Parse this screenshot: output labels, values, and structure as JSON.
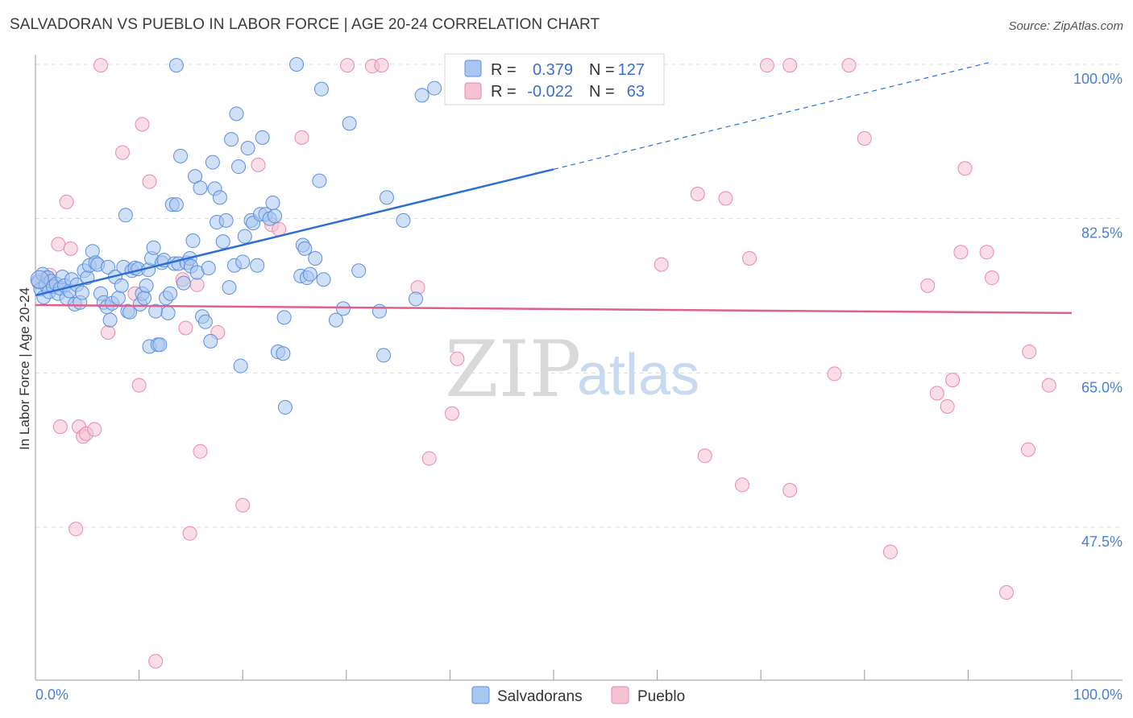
{
  "title": "SALVADORAN VS PUEBLO IN LABOR FORCE | AGE 20-24 CORRELATION CHART",
  "source": "Source: ZipAtlas.com",
  "watermark": {
    "zip": "ZIP",
    "atlas": "atlas"
  },
  "colors": {
    "blue": "#5b8fe0",
    "blue_fill": "#a9c6f0",
    "blue_line": "#2a6ed6",
    "pink": "#e98aa8",
    "pink_fill": "#f4c2d3",
    "pink_line": "#e0608a",
    "tick": "#4a7fd6",
    "grid": "#dcdcdc"
  },
  "chart_data": {
    "type": "scatter",
    "title": "SALVADORAN VS PUEBLO IN LABOR FORCE | AGE 20-24 CORRELATION CHART",
    "xlabel": "",
    "ylabel": "In Labor Force | Age 20-24",
    "xlim": [
      0,
      100
    ],
    "ylim": [
      30,
      102
    ],
    "x_tick_labels": [
      "0.0%",
      "100.0%"
    ],
    "y_ticks": [
      47.5,
      65.0,
      82.5,
      100.0
    ],
    "y_tick_labels": [
      "47.5%",
      "65.0%",
      "82.5%",
      "100.0%"
    ],
    "grid": true,
    "legend_top": {
      "rows": [
        {
          "r_label": "R =",
          "r_value": "0.379",
          "n_label": "N =",
          "n_value": "127"
        },
        {
          "r_label": "R =",
          "r_value": "-0.022",
          "n_label": "N =",
          "n_value": "63"
        }
      ]
    },
    "legend_bottom": [
      "Salvadorans",
      "Pueblo"
    ],
    "series": [
      {
        "name": "Salvadorans",
        "trend": {
          "x0": 0,
          "y0": 73.8,
          "x1": 50,
          "y1": 88.1,
          "dash_to_x": 92,
          "dash_to_y": 100.2
        },
        "points": [
          [
            0.3,
            75.3
          ],
          [
            0.5,
            74.5
          ],
          [
            0.7,
            76.2
          ],
          [
            0.8,
            73.6
          ],
          [
            1.0,
            75.0
          ],
          [
            1.2,
            75.8
          ],
          [
            1.3,
            74.2
          ],
          [
            1.5,
            75.4
          ],
          [
            1.7,
            74.8
          ],
          [
            2.0,
            75.1
          ],
          [
            2.2,
            74.0
          ],
          [
            2.4,
            74.6
          ],
          [
            2.6,
            75.9
          ],
          [
            2.8,
            74.9
          ],
          [
            3.0,
            73.5
          ],
          [
            3.3,
            74.3
          ],
          [
            3.5,
            75.6
          ],
          [
            3.8,
            72.8
          ],
          [
            4.0,
            75.0
          ],
          [
            4.3,
            73.0
          ],
          [
            4.5,
            74.1
          ],
          [
            4.7,
            76.6
          ],
          [
            5.0,
            75.8
          ],
          [
            5.2,
            77.2
          ],
          [
            5.5,
            78.8
          ],
          [
            5.8,
            77.5
          ],
          [
            6.0,
            77.3
          ],
          [
            6.3,
            74.0
          ],
          [
            6.6,
            73.0
          ],
          [
            6.9,
            72.5
          ],
          [
            7.0,
            77.0
          ],
          [
            7.2,
            71.0
          ],
          [
            7.4,
            72.9
          ],
          [
            7.7,
            75.9
          ],
          [
            8.0,
            73.5
          ],
          [
            8.3,
            74.9
          ],
          [
            8.5,
            77.0
          ],
          [
            8.7,
            82.9
          ],
          [
            8.9,
            72.0
          ],
          [
            9.1,
            71.9
          ],
          [
            9.3,
            76.6
          ],
          [
            9.6,
            76.9
          ],
          [
            9.9,
            76.8
          ],
          [
            10.1,
            72.8
          ],
          [
            10.3,
            74.0
          ],
          [
            10.5,
            73.5
          ],
          [
            10.7,
            74.9
          ],
          [
            10.9,
            76.7
          ],
          [
            11.0,
            68.0
          ],
          [
            11.2,
            78.0
          ],
          [
            11.4,
            79.2
          ],
          [
            11.6,
            72.0
          ],
          [
            11.8,
            68.2
          ],
          [
            12.0,
            68.2
          ],
          [
            12.2,
            77.5
          ],
          [
            12.4,
            77.8
          ],
          [
            12.6,
            73.5
          ],
          [
            12.8,
            71.8
          ],
          [
            13.0,
            74.0
          ],
          [
            13.2,
            84.1
          ],
          [
            13.4,
            77.4
          ],
          [
            13.6,
            84.1
          ],
          [
            13.8,
            77.4
          ],
          [
            14.0,
            89.6
          ],
          [
            14.3,
            75.2
          ],
          [
            14.6,
            77.5
          ],
          [
            14.9,
            78.0
          ],
          [
            15.0,
            77.1
          ],
          [
            15.2,
            80.0
          ],
          [
            15.4,
            87.3
          ],
          [
            15.6,
            76.4
          ],
          [
            15.9,
            86.0
          ],
          [
            16.1,
            71.4
          ],
          [
            16.4,
            70.8
          ],
          [
            16.7,
            76.9
          ],
          [
            16.9,
            68.6
          ],
          [
            17.1,
            88.9
          ],
          [
            17.3,
            85.9
          ],
          [
            17.5,
            82.1
          ],
          [
            17.8,
            84.9
          ],
          [
            18.1,
            79.9
          ],
          [
            18.4,
            82.3
          ],
          [
            18.7,
            74.7
          ],
          [
            18.9,
            91.5
          ],
          [
            19.2,
            77.2
          ],
          [
            19.4,
            94.4
          ],
          [
            19.6,
            88.4
          ],
          [
            19.8,
            65.8
          ],
          [
            20.0,
            77.6
          ],
          [
            20.2,
            80.5
          ],
          [
            20.5,
            90.5
          ],
          [
            20.8,
            82.3
          ],
          [
            21.0,
            82.0
          ],
          [
            21.4,
            77.2
          ],
          [
            21.7,
            83.0
          ],
          [
            21.9,
            91.7
          ],
          [
            22.2,
            83.0
          ],
          [
            22.6,
            82.5
          ],
          [
            22.9,
            84.3
          ],
          [
            23.1,
            82.8
          ],
          [
            23.4,
            67.4
          ],
          [
            23.9,
            67.2
          ],
          [
            24.0,
            71.3
          ],
          [
            24.1,
            61.1
          ],
          [
            25.2,
            100.0
          ],
          [
            25.6,
            76.0
          ],
          [
            25.8,
            79.5
          ],
          [
            26.0,
            79.1
          ],
          [
            26.2,
            75.8
          ],
          [
            26.5,
            76.2
          ],
          [
            27.0,
            78.0
          ],
          [
            27.4,
            86.8
          ],
          [
            27.6,
            97.2
          ],
          [
            27.8,
            75.6
          ],
          [
            29.0,
            71.0
          ],
          [
            29.7,
            72.3
          ],
          [
            30.3,
            93.3
          ],
          [
            31.2,
            76.6
          ],
          [
            33.2,
            72.0
          ],
          [
            33.6,
            67.0
          ],
          [
            33.9,
            84.9
          ],
          [
            35.5,
            82.3
          ],
          [
            36.7,
            73.4
          ],
          [
            37.3,
            96.5
          ],
          [
            38.5,
            97.3
          ],
          [
            42.0,
            99.8
          ],
          [
            13.6,
            99.9
          ]
        ]
      },
      {
        "name": "Pueblo",
        "trend": {
          "x0": 0,
          "y0": 72.7,
          "x1": 100,
          "y1": 71.8
        },
        "points": [
          [
            0.3,
            75.5
          ],
          [
            1.0,
            75.8
          ],
          [
            1.4,
            76.1
          ],
          [
            2.2,
            79.6
          ],
          [
            2.4,
            58.9
          ],
          [
            3.0,
            84.4
          ],
          [
            3.4,
            79.1
          ],
          [
            3.9,
            47.3
          ],
          [
            4.2,
            58.9
          ],
          [
            4.6,
            57.8
          ],
          [
            4.9,
            58.1
          ],
          [
            5.7,
            58.6
          ],
          [
            6.3,
            99.9
          ],
          [
            7.0,
            69.6
          ],
          [
            8.4,
            90.0
          ],
          [
            9.6,
            74.0
          ],
          [
            10.0,
            63.6
          ],
          [
            10.3,
            93.2
          ],
          [
            11.0,
            86.7
          ],
          [
            11.6,
            32.3
          ],
          [
            14.2,
            75.6
          ],
          [
            14.5,
            70.1
          ],
          [
            14.9,
            46.8
          ],
          [
            15.6,
            75.0
          ],
          [
            15.9,
            56.1
          ],
          [
            17.6,
            69.6
          ],
          [
            20.0,
            50.0
          ],
          [
            21.5,
            88.6
          ],
          [
            22.8,
            81.8
          ],
          [
            23.5,
            81.3
          ],
          [
            25.7,
            91.7
          ],
          [
            30.1,
            99.9
          ],
          [
            32.5,
            99.8
          ],
          [
            33.4,
            99.9
          ],
          [
            36.9,
            74.7
          ],
          [
            38.0,
            55.3
          ],
          [
            40.2,
            60.4
          ],
          [
            40.7,
            66.6
          ],
          [
            60.4,
            77.3
          ],
          [
            63.9,
            85.3
          ],
          [
            64.6,
            55.6
          ],
          [
            66.6,
            84.8
          ],
          [
            68.2,
            52.3
          ],
          [
            68.9,
            78.0
          ],
          [
            70.6,
            99.9
          ],
          [
            72.8,
            99.9
          ],
          [
            72.8,
            51.7
          ],
          [
            77.1,
            64.9
          ],
          [
            78.5,
            99.9
          ],
          [
            80.0,
            91.6
          ],
          [
            82.5,
            44.7
          ],
          [
            86.1,
            74.9
          ],
          [
            87.0,
            62.7
          ],
          [
            88.0,
            61.2
          ],
          [
            88.5,
            64.2
          ],
          [
            89.3,
            78.7
          ],
          [
            89.7,
            88.2
          ],
          [
            91.8,
            78.7
          ],
          [
            92.3,
            75.8
          ],
          [
            93.7,
            40.1
          ],
          [
            95.8,
            56.3
          ],
          [
            95.9,
            67.4
          ],
          [
            97.8,
            63.6
          ]
        ]
      }
    ]
  }
}
